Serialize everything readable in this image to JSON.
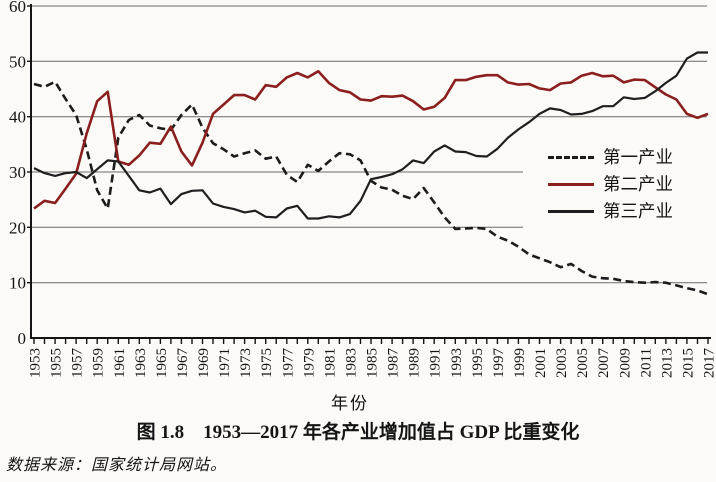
{
  "figure": {
    "caption": "图 1.8　1953—2017 年各产业增加值占 GDP 比重变化",
    "source_note": "数据来源：国家统计局网站。"
  },
  "legend": {
    "items": [
      {
        "label": "第一产业",
        "line_style": "dashed",
        "color": "#1c1c1c"
      },
      {
        "label": "第二产业",
        "line_style": "solid",
        "color": "#8b1e1e"
      },
      {
        "label": "第三产业",
        "line_style": "solid",
        "color": "#1f1f1f"
      }
    ]
  },
  "chart_data": {
    "type": "line",
    "title": "图 1.8 1953—2017 年各产业增加值占 GDP 比重变化",
    "xlabel": "年份",
    "ylabel": "",
    "ylim": [
      0,
      60
    ],
    "y_ticks": [
      0,
      10,
      20,
      30,
      40,
      50,
      60
    ],
    "grid": true,
    "legend_position": "middle-right",
    "x": [
      1953,
      1954,
      1955,
      1956,
      1957,
      1958,
      1959,
      1960,
      1961,
      1962,
      1963,
      1964,
      1965,
      1966,
      1967,
      1968,
      1969,
      1970,
      1971,
      1972,
      1973,
      1974,
      1975,
      1976,
      1977,
      1978,
      1979,
      1980,
      1981,
      1982,
      1983,
      1984,
      1985,
      1986,
      1987,
      1988,
      1989,
      1990,
      1991,
      1992,
      1993,
      1994,
      1995,
      1996,
      1997,
      1998,
      1999,
      2000,
      2001,
      2002,
      2003,
      2004,
      2005,
      2006,
      2007,
      2008,
      2009,
      2010,
      2011,
      2012,
      2013,
      2014,
      2015,
      2016,
      2017
    ],
    "x_tick_labels": [
      "1953",
      "1955",
      "1957",
      "1959",
      "1961",
      "1963",
      "1965",
      "1967",
      "1969",
      "1971",
      "1973",
      "1975",
      "1977",
      "1979",
      "1981",
      "1983",
      "1985",
      "1987",
      "1989",
      "1991",
      "1993",
      "1995",
      "1997",
      "1999",
      "2001",
      "2003",
      "2005",
      "2007",
      "2009",
      "2011",
      "2013",
      "2015",
      "2017"
    ],
    "series": [
      {
        "name": "第一产业",
        "style": "dashed",
        "color": "#1c1c1c",
        "values": [
          45.9,
          45.4,
          46.3,
          43.2,
          40.3,
          34.1,
          26.7,
          23.4,
          36.2,
          39.4,
          40.3,
          38.4,
          37.9,
          37.6,
          40.3,
          42.2,
          38.0,
          35.2,
          34.1,
          32.8,
          33.4,
          33.9,
          32.4,
          32.8,
          29.5,
          28.2,
          31.3,
          30.2,
          31.9,
          33.4,
          33.2,
          32.1,
          28.4,
          27.2,
          26.8,
          25.7,
          25.1,
          27.1,
          24.5,
          21.8,
          19.7,
          19.8,
          19.9,
          19.7,
          18.3,
          17.6,
          16.5,
          15.1,
          14.4,
          13.7,
          12.8,
          13.4,
          12.1,
          11.1,
          10.8,
          10.7,
          10.3,
          10.1,
          10.0,
          10.1,
          10.0,
          9.5,
          9.0,
          8.6,
          7.9
        ]
      },
      {
        "name": "第二产业",
        "style": "solid",
        "color": "#8b1e1e",
        "values": [
          23.4,
          24.8,
          24.4,
          27.0,
          29.7,
          37.0,
          42.8,
          44.5,
          31.9,
          31.3,
          33.0,
          35.3,
          35.1,
          38.2,
          33.7,
          31.2,
          35.3,
          40.5,
          42.2,
          43.9,
          43.9,
          43.1,
          45.7,
          45.4,
          47.1,
          47.9,
          47.1,
          48.2,
          46.1,
          44.8,
          44.4,
          43.1,
          42.9,
          43.7,
          43.6,
          43.8,
          42.8,
          41.3,
          41.8,
          43.4,
          46.6,
          46.6,
          47.2,
          47.5,
          47.5,
          46.2,
          45.8,
          45.9,
          45.1,
          44.8,
          46.0,
          46.2,
          47.4,
          47.9,
          47.3,
          47.4,
          46.2,
          46.7,
          46.6,
          45.3,
          44.0,
          43.1,
          40.5,
          39.8,
          40.5
        ]
      },
      {
        "name": "第三产业",
        "style": "solid",
        "color": "#1f1f1f",
        "values": [
          30.7,
          29.8,
          29.3,
          29.8,
          30.0,
          28.9,
          30.5,
          32.1,
          31.9,
          29.3,
          26.7,
          26.3,
          27.0,
          24.2,
          26.0,
          26.6,
          26.7,
          24.3,
          23.7,
          23.3,
          22.7,
          23.0,
          21.9,
          21.8,
          23.4,
          23.9,
          21.6,
          21.6,
          22.0,
          21.8,
          22.4,
          24.8,
          28.7,
          29.1,
          29.6,
          30.5,
          32.1,
          31.6,
          33.7,
          34.8,
          33.7,
          33.6,
          32.9,
          32.8,
          34.2,
          36.2,
          37.7,
          39.0,
          40.5,
          41.5,
          41.2,
          40.4,
          40.5,
          41.0,
          41.9,
          41.9,
          43.5,
          43.2,
          43.4,
          44.6,
          46.1,
          47.4,
          50.5,
          51.6,
          51.6
        ]
      }
    ]
  }
}
